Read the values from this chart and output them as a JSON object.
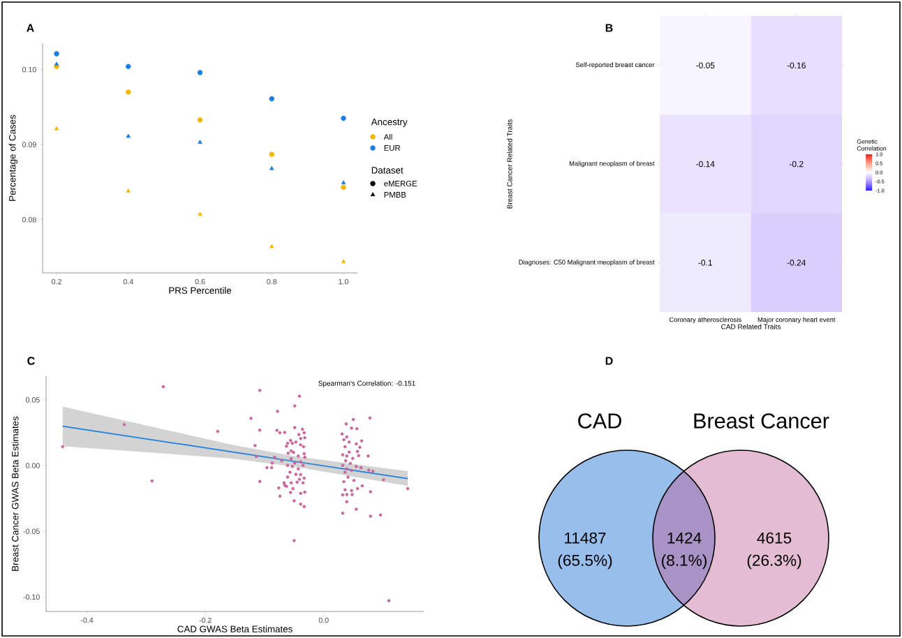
{
  "chart_data": [
    {
      "type": "scatter",
      "title": "A",
      "xlabel": "PRS Percentile",
      "ylabel": "Percentage of Cases",
      "legend_title": "Ancestry",
      "legend": "right",
      "x": [
        0.2,
        0.4,
        0.6,
        0.8,
        1.0
      ],
      "series": [
        {
          "name": "All",
          "color": "#f5b800",
          "marker": "circle",
          "values": [
            0.1004,
            0.097,
            0.0933,
            0.0887,
            0.0843
          ]
        },
        {
          "name": "EUR",
          "color": "#1a7fe0",
          "marker": "circle",
          "values": [
            0.1021,
            0.1004,
            0.0996,
            0.0961,
            0.0935
          ]
        },
        {
          "color": "#f5b800",
          "marker": "triangle",
          "values": [
            0.0921,
            0.0838,
            0.0807,
            0.0764,
            0.0744
          ]
        },
        {
          "color": "#1a7fe0",
          "marker": "triangle",
          "values": [
            0.1007,
            0.0911,
            0.0903,
            0.0868,
            0.0849
          ]
        }
      ],
      "annotations": [
        "Dataset",
        "eMERGE",
        "PMBB"
      ],
      "xlim": [
        0.161,
        1.039
      ],
      "ylim": [
        0.0729,
        0.1035
      ],
      "xticks": [
        0.2,
        0.4,
        0.6,
        0.8,
        {
          "value": 1.0,
          "label": "1.0"
        }
      ],
      "yticks": [
        0.08,
        0.09,
        {
          "value": 0.1,
          "label": "0.10"
        }
      ]
    },
    {
      "type": "heatmap",
      "title": "B",
      "xlabel": "CAD Related Traits",
      "ylabel": "Breast Cancer Related Traits",
      "clabel": "Genetic Correlation",
      "categories": [
        "Coronary atherosclerosis",
        "Major coronary heart event"
      ],
      "y_categories": [
        "Self-reported breast cancer",
        "Malignant neoplasm of breast",
        "Diagnoses: C50 Malignant meoplasm of breast"
      ],
      "cells": [
        [
          -0.05,
          -0.16
        ],
        [
          -0.14,
          -0.2
        ],
        [
          -0.1,
          -0.24
        ]
      ],
      "data_labels": true,
      "clim": [
        -1,
        1
      ],
      "cticks": [
        {
          "value": 1,
          "label": "1.0"
        },
        0.5,
        {
          "value": 0,
          "label": "0.0"
        },
        -0.5,
        {
          "value": -1,
          "label": "-1.0"
        }
      ]
    },
    {
      "type": "scatter",
      "title": "C",
      "xlabel": "CAD GWAS Beta Estimates",
      "ylabel": "Breast Cancer GWAS Beta Estimates",
      "annotations": [
        "Spearman's Correlation: -0.151"
      ],
      "xlim": [
        -0.469,
        0.169
      ],
      "ylim": [
        -0.111,
        0.068
      ],
      "xticks": [
        -0.4,
        -0.2,
        {
          "value": 0,
          "label": "0.0"
        }
      ],
      "yticks": [
        {
          "value": -0.1,
          "label": "-0.10"
        },
        -0.05,
        {
          "value": 0,
          "label": "0.00"
        },
        0.05
      ],
      "series": [
        {
          "type": "scatter",
          "color": "#c9669f",
          "x": [
            -0.441,
            -0.337,
            -0.271,
            -0.29,
            -0.179,
            -0.108,
            -0.123,
            -0.108,
            -0.116,
            -0.114,
            -0.108,
            -0.096,
            -0.088,
            -0.087,
            -0.083,
            -0.078,
            -0.079,
            -0.074,
            -0.066,
            -0.076,
            -0.074,
            -0.071,
            -0.049,
            -0.041,
            -0.05,
            -0.049,
            -0.036,
            -0.033,
            -0.032,
            -0.042,
            -0.039,
            -0.056,
            -0.061,
            -0.053,
            -0.047,
            -0.063,
            -0.055,
            -0.06,
            -0.051,
            -0.039,
            -0.034,
            -0.033,
            -0.043,
            -0.032,
            -0.055,
            -0.049,
            -0.039,
            -0.061,
            -0.053,
            -0.043,
            -0.035,
            -0.057,
            -0.047,
            -0.039,
            -0.061,
            -0.041,
            -0.033,
            -0.067,
            -0.055,
            -0.045,
            -0.035,
            -0.063,
            -0.052,
            -0.056,
            -0.039,
            -0.032,
            -0.05,
            -0.039,
            -0.033,
            -0.066,
            0.05,
            0.078,
            0.038,
            0.047,
            0.056,
            0.031,
            0.039,
            0.034,
            0.064,
            0.043,
            0.055,
            0.036,
            0.061,
            0.057,
            0.043,
            0.032,
            0.039,
            0.049,
            0.075,
            0.059,
            0.037,
            0.045,
            0.032,
            0.055,
            0.063,
            0.039,
            0.036,
            0.047,
            0.076,
            0.083,
            0.041,
            0.034,
            0.051,
            0.065,
            0.036,
            0.047,
            0.057,
            0.079,
            0.039,
            0.048,
            0.032,
            0.039,
            0.055,
            0.032,
            0.079,
            0.096,
            0.101,
            0.142,
            0.11
          ],
          "values": [
            0.0144,
            0.0312,
            0.06,
            -0.0117,
            0.026,
            0.0573,
            0.036,
            0.027,
            0.0153,
            0.0069,
            -0.0121,
            -0.0016,
            -0.0016,
            0.0019,
            0.0064,
            0.0413,
            0.0268,
            0.025,
            0.0252,
            -0.017,
            -0.0232,
            0.0037,
            0.0454,
            0.0528,
            -0.0571,
            0.0289,
            0.0276,
            0.025,
            0.0212,
            0.0237,
            0.0206,
            0.0191,
            0.017,
            0.017,
            0.0179,
            0.0147,
            0.0112,
            0.0094,
            0.01,
            0.0158,
            0.0144,
            0.009,
            0.0073,
            0.0064,
            0.0052,
            0.0019,
            0.0028,
            0.0002,
            -0.0007,
            -0.0025,
            0.0002,
            -0.0051,
            -0.0066,
            -0.0069,
            -0.0087,
            -0.0105,
            -0.0096,
            -0.0131,
            -0.0131,
            -0.0126,
            -0.0131,
            -0.0158,
            -0.0175,
            -0.0204,
            -0.0211,
            -0.0202,
            -0.0268,
            -0.0293,
            -0.0312,
            -0.0149,
            0.0351,
            0.0362,
            0.0317,
            0.0285,
            0.028,
            0.0241,
            0.0218,
            0.0197,
            0.0188,
            0.0179,
            0.0165,
            0.0144,
            0.014,
            0.0108,
            0.0103,
            0.0082,
            0.0073,
            0.0055,
            0.0073,
            0.0076,
            0.0037,
            0.0016,
            0.0002,
            -0.0007,
            -0.0016,
            -0.0025,
            -0.0051,
            -0.0037,
            -0.0034,
            -0.0043,
            -0.0087,
            -0.0122,
            -0.0113,
            -0.0154,
            -0.0184,
            -0.019,
            -0.0175,
            -0.0199,
            -0.022,
            -0.022,
            -0.0223,
            -0.0275,
            -0.0332,
            -0.0362,
            -0.0385,
            -0.0376,
            -0.0108,
            -0.0175,
            -0.1028
          ]
        },
        {
          "type": "line",
          "color": "#1a7fe0",
          "x": [
            -0.441,
            -0.157,
            -0.05,
            0.142
          ],
          "values": [
            0.03,
            0.0106,
            0.0032,
            -0.0099
          ],
          "lower": [
            0.0147,
            0.0055,
            -0.0008,
            -0.0154
          ],
          "upper": [
            0.0449,
            0.0161,
            0.0072,
            -0.0043
          ]
        }
      ]
    },
    {
      "type": "other",
      "title": "D",
      "categories": [
        "CAD",
        null,
        "Breast Cancer"
      ],
      "value_labels": [
        "11487 (65.5%)",
        "1424 (8.1%)",
        "4615 (26.3%)"
      ],
      "colors": [
        "#98bfec",
        "#a993c6",
        "#e4bdd4"
      ]
    }
  ]
}
